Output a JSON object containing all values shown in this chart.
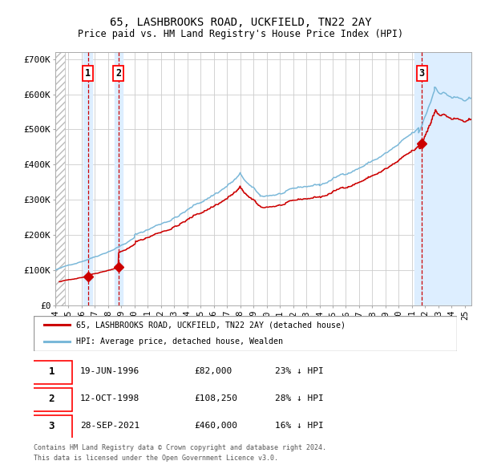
{
  "title1": "65, LASHBROOKS ROAD, UCKFIELD, TN22 2AY",
  "title2": "Price paid vs. HM Land Registry's House Price Index (HPI)",
  "ylim": [
    0,
    720000
  ],
  "yticks": [
    0,
    100000,
    200000,
    300000,
    400000,
    500000,
    600000,
    700000
  ],
  "ytick_labels": [
    "£0",
    "£100K",
    "£200K",
    "£300K",
    "£400K",
    "£500K",
    "£600K",
    "£700K"
  ],
  "hpi_color": "#7ab8d9",
  "price_color": "#cc0000",
  "sale1_date": 1996.47,
  "sale1_price": 82000,
  "sale2_date": 1998.79,
  "sale2_price": 108250,
  "sale3_date": 2021.74,
  "sale3_price": 460000,
  "legend_label_red": "65, LASHBROOKS ROAD, UCKFIELD, TN22 2AY (detached house)",
  "legend_label_blue": "HPI: Average price, detached house, Wealden",
  "table_rows": [
    [
      "1",
      "19-JUN-1996",
      "£82,000",
      "23% ↓ HPI"
    ],
    [
      "2",
      "12-OCT-1998",
      "£108,250",
      "28% ↓ HPI"
    ],
    [
      "3",
      "28-SEP-2021",
      "£460,000",
      "16% ↓ HPI"
    ]
  ],
  "footnote1": "Contains HM Land Registry data © Crown copyright and database right 2024.",
  "footnote2": "This data is licensed under the Open Government Licence v3.0.",
  "shade_color": "#ddeeff",
  "grid_color": "#cccccc",
  "xmin": 1994.0,
  "xmax": 2025.5
}
